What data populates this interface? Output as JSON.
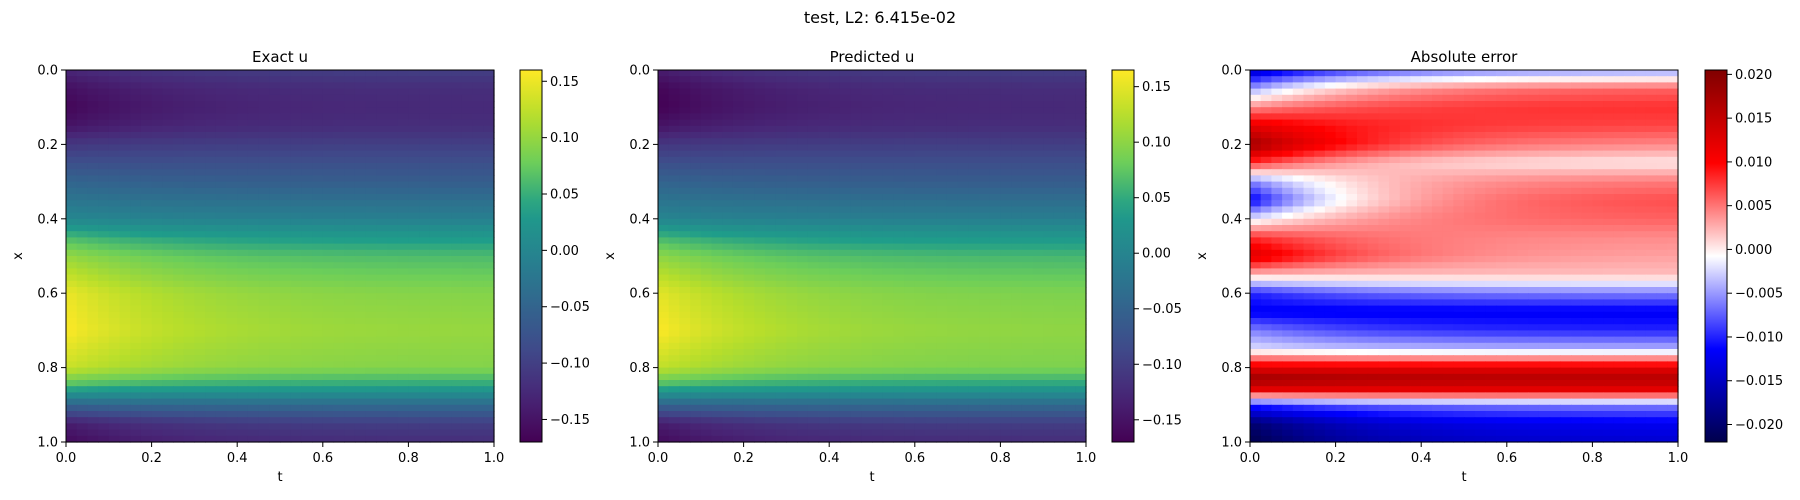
{
  "suptitle": "test, L2: 6.415e-02",
  "chart_data": [
    {
      "type": "heatmap",
      "title": "Exact u",
      "xlabel": "t",
      "ylabel": "x",
      "xlim": [
        0.0,
        1.0
      ],
      "ylim": [
        1.0,
        0.0
      ],
      "xticks": [
        "0.0",
        "0.2",
        "0.4",
        "0.6",
        "0.8",
        "1.0"
      ],
      "yticks": [
        "0.0",
        "0.2",
        "0.4",
        "0.6",
        "0.8",
        "1.0"
      ],
      "colormap": "viridis",
      "colorbar": {
        "min": -0.17,
        "max": 0.16,
        "ticks": [
          -0.15,
          -0.1,
          -0.05,
          0.0,
          0.05,
          0.1,
          0.15
        ],
        "tick_labels": [
          "−0.15",
          "−0.10",
          "−0.05",
          "0.00",
          "0.05",
          "0.10",
          "0.15"
        ]
      },
      "field": {
        "x": [
          0.0,
          0.05,
          0.1,
          0.15,
          0.2,
          0.3,
          0.4,
          0.45,
          0.5,
          0.6,
          0.7,
          0.8,
          0.85,
          0.9,
          0.95,
          1.0
        ],
        "u_t0": [
          -0.13,
          -0.155,
          -0.165,
          -0.15,
          -0.11,
          -0.05,
          0.0,
          0.06,
          0.1,
          0.15,
          0.16,
          0.13,
          0.06,
          -0.05,
          -0.14,
          -0.16
        ],
        "u_t1": [
          -0.1,
          -0.12,
          -0.125,
          -0.12,
          -0.1,
          -0.06,
          -0.01,
          0.03,
          0.06,
          0.09,
          0.1,
          0.09,
          0.04,
          -0.04,
          -0.1,
          -0.12
        ]
      }
    },
    {
      "type": "heatmap",
      "title": "Predicted u",
      "xlabel": "t",
      "ylabel": "x",
      "xlim": [
        0.0,
        1.0
      ],
      "ylim": [
        1.0,
        0.0
      ],
      "xticks": [
        "0.0",
        "0.2",
        "0.4",
        "0.6",
        "0.8",
        "1.0"
      ],
      "yticks": [
        "0.0",
        "0.2",
        "0.4",
        "0.6",
        "0.8",
        "1.0"
      ],
      "colormap": "viridis",
      "colorbar": {
        "min": -0.17,
        "max": 0.165,
        "ticks": [
          -0.15,
          -0.1,
          -0.05,
          0.0,
          0.05,
          0.1,
          0.15
        ],
        "tick_labels": [
          "−0.15",
          "−0.10",
          "−0.05",
          "0.00",
          "0.05",
          "0.10",
          "0.15"
        ]
      },
      "field": {
        "x": [
          0.0,
          0.05,
          0.1,
          0.15,
          0.2,
          0.3,
          0.4,
          0.45,
          0.5,
          0.6,
          0.7,
          0.8,
          0.85,
          0.9,
          0.95,
          1.0
        ],
        "u_t0": [
          -0.14,
          -0.165,
          -0.17,
          -0.15,
          -0.11,
          -0.05,
          0.0,
          0.06,
          0.1,
          0.15,
          0.165,
          0.13,
          0.06,
          -0.05,
          -0.14,
          -0.16
        ],
        "u_t1": [
          -0.1,
          -0.12,
          -0.125,
          -0.12,
          -0.1,
          -0.06,
          -0.01,
          0.03,
          0.06,
          0.09,
          0.1,
          0.09,
          0.04,
          -0.04,
          -0.1,
          -0.12
        ]
      }
    },
    {
      "type": "heatmap",
      "title": "Absolute error",
      "xlabel": "t",
      "ylabel": "x",
      "xlim": [
        0.0,
        1.0
      ],
      "ylim": [
        1.0,
        0.0
      ],
      "xticks": [
        "0.0",
        "0.2",
        "0.4",
        "0.6",
        "0.8",
        "1.0"
      ],
      "yticks": [
        "0.0",
        "0.2",
        "0.4",
        "0.6",
        "0.8",
        "1.0"
      ],
      "colormap": "seismic",
      "colorbar": {
        "min": -0.022,
        "max": 0.0205,
        "ticks": [
          -0.02,
          -0.015,
          -0.01,
          -0.005,
          0.0,
          0.005,
          0.01,
          0.015,
          0.02
        ],
        "tick_labels": [
          "−0.020",
          "−0.015",
          "−0.010",
          "−0.005",
          "0.000",
          "0.005",
          "0.010",
          "0.015",
          "0.020"
        ]
      },
      "field": {
        "x": [
          0.0,
          0.05,
          0.1,
          0.15,
          0.2,
          0.25,
          0.3,
          0.35,
          0.4,
          0.45,
          0.5,
          0.55,
          0.6,
          0.65,
          0.7,
          0.75,
          0.8,
          0.83,
          0.86,
          0.9,
          0.95,
          1.0
        ],
        "e_t0": [
          -0.015,
          -0.005,
          0.004,
          0.012,
          0.018,
          0.008,
          -0.006,
          -0.012,
          -0.002,
          0.008,
          0.013,
          0.002,
          -0.01,
          -0.012,
          -0.006,
          -0.002,
          0.012,
          0.018,
          0.012,
          -0.01,
          -0.02,
          -0.022
        ],
        "e_t1": [
          -0.005,
          0.006,
          0.008,
          0.007,
          0.004,
          0.0,
          0.005,
          0.007,
          0.006,
          0.004,
          0.003,
          0.002,
          -0.006,
          -0.012,
          -0.01,
          -0.004,
          0.012,
          0.016,
          0.012,
          -0.006,
          -0.012,
          -0.014
        ]
      }
    }
  ]
}
